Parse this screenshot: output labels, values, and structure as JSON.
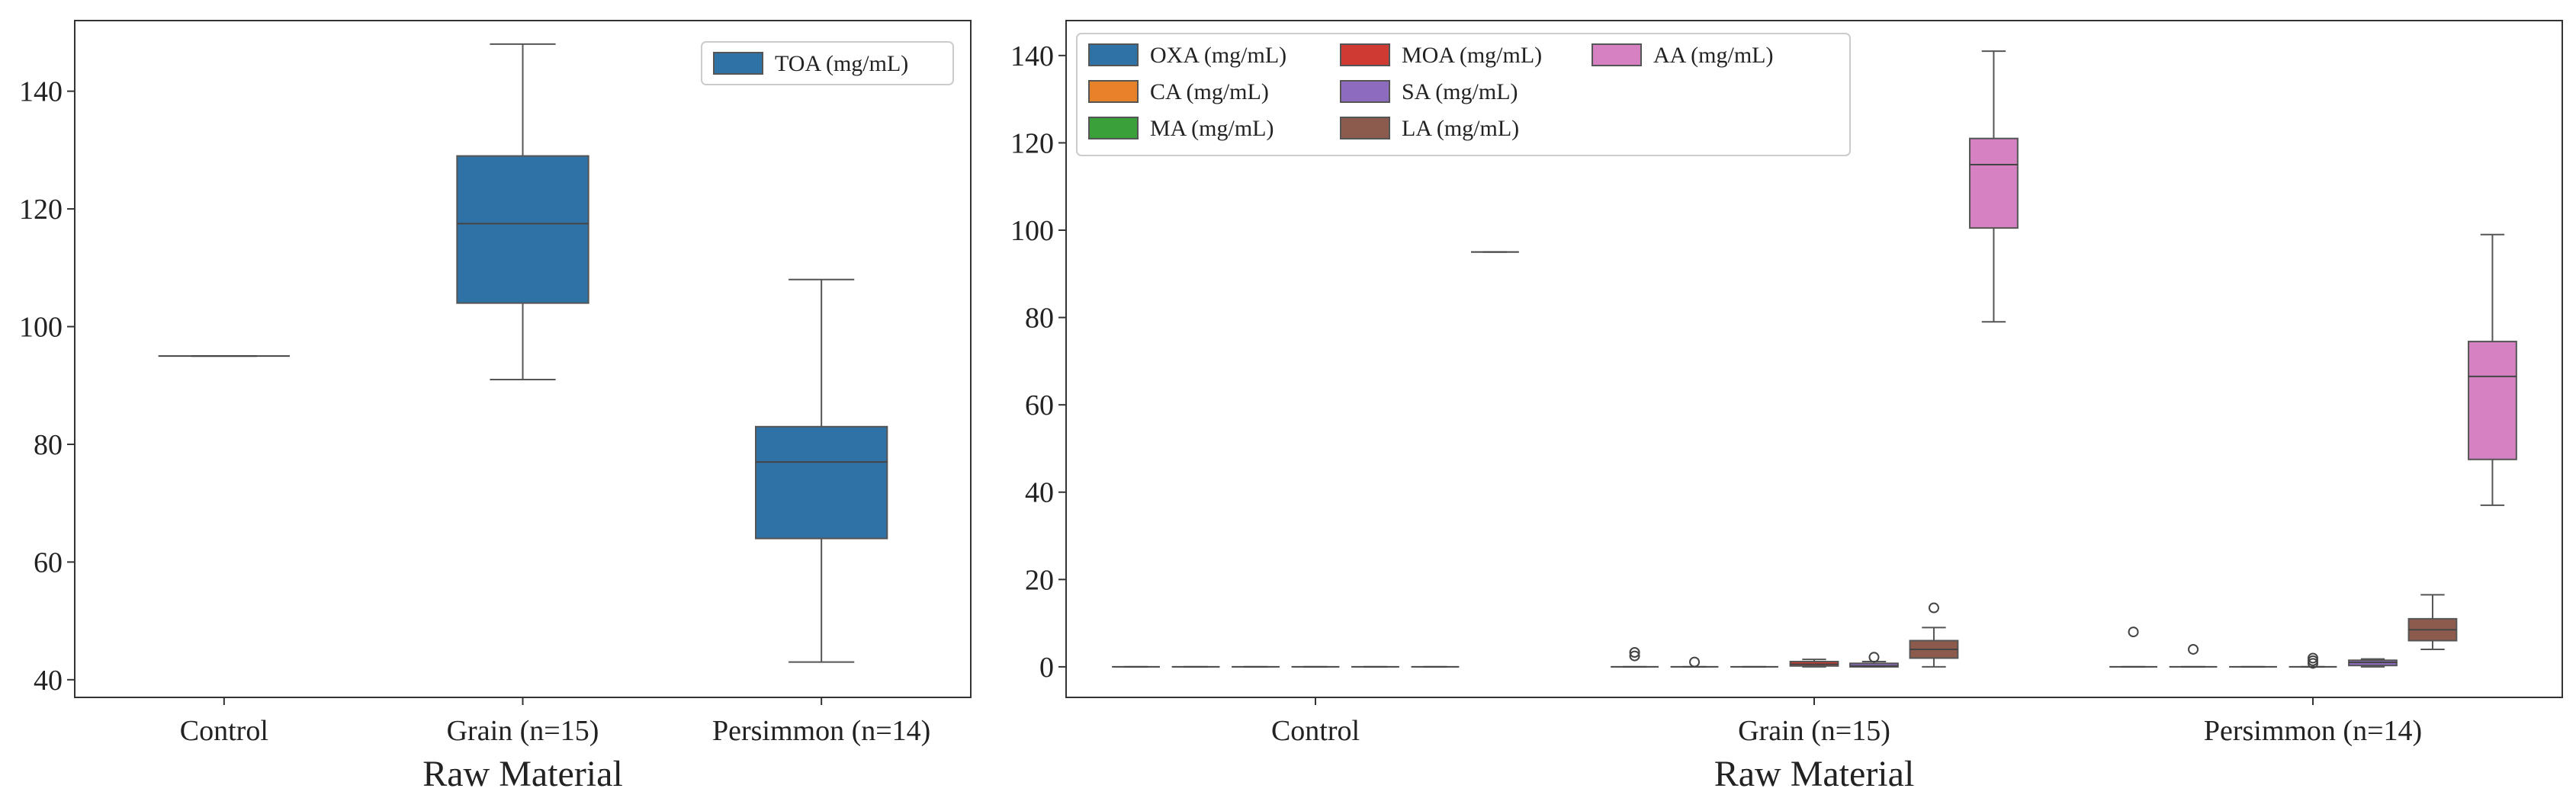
{
  "chart_data": [
    {
      "type": "box",
      "xlabel": "Raw Material",
      "ylabel": "",
      "ylim": [
        37,
        152
      ],
      "yticks": [
        40,
        60,
        80,
        100,
        120,
        140
      ],
      "categories": [
        "Control",
        "Grain (n=15)",
        "Persimmon (n=14)"
      ],
      "legend": {
        "placement": "top-right",
        "entries": [
          {
            "label": "TOA (mg/mL)",
            "color": "#2f73a6"
          }
        ]
      },
      "series": [
        {
          "name": "TOA (mg/mL)",
          "color": "#2f73a6",
          "boxes": [
            {
              "whislo": 95,
              "q1": 95,
              "med": 95,
              "q3": 95,
              "whishi": 95,
              "fliers": []
            },
            {
              "whislo": 91,
              "q1": 104,
              "med": 117.5,
              "q3": 129,
              "whishi": 148,
              "fliers": []
            },
            {
              "whislo": 43,
              "q1": 64,
              "med": 77,
              "q3": 83,
              "whishi": 108,
              "fliers": []
            }
          ]
        }
      ]
    },
    {
      "type": "box",
      "xlabel": "Raw Material",
      "ylabel": "",
      "ylim": [
        -7,
        148
      ],
      "yticks": [
        0,
        20,
        40,
        60,
        80,
        100,
        120,
        140
      ],
      "categories": [
        "Control",
        "Grain (n=15)",
        "Persimmon (n=14)"
      ],
      "legend": {
        "placement": "top-left",
        "columns": 3
      },
      "series": [
        {
          "name": "OXA (mg/mL)",
          "color": "#2f73a6",
          "boxes": [
            {
              "whislo": 0,
              "q1": 0,
              "med": 0,
              "q3": 0,
              "whishi": 0,
              "fliers": []
            },
            {
              "whislo": 0,
              "q1": 0,
              "med": 0,
              "q3": 0,
              "whishi": 0,
              "fliers": [
                2.5,
                3.3
              ]
            },
            {
              "whislo": 0,
              "q1": 0,
              "med": 0,
              "q3": 0,
              "whishi": 0,
              "fliers": [
                8
              ]
            }
          ]
        },
        {
          "name": "CA (mg/mL)",
          "color": "#e8822a",
          "boxes": [
            {
              "whislo": 0,
              "q1": 0,
              "med": 0,
              "q3": 0,
              "whishi": 0,
              "fliers": []
            },
            {
              "whislo": 0,
              "q1": 0,
              "med": 0,
              "q3": 0,
              "whishi": 0,
              "fliers": [
                1.1
              ]
            },
            {
              "whislo": 0,
              "q1": 0,
              "med": 0,
              "q3": 0,
              "whishi": 0,
              "fliers": [
                4
              ]
            }
          ]
        },
        {
          "name": "MA (mg/mL)",
          "color": "#3aa03a",
          "boxes": [
            {
              "whislo": 0,
              "q1": 0,
              "med": 0,
              "q3": 0,
              "whishi": 0,
              "fliers": []
            },
            {
              "whislo": 0,
              "q1": 0,
              "med": 0,
              "q3": 0,
              "whishi": 0,
              "fliers": []
            },
            {
              "whislo": 0,
              "q1": 0,
              "med": 0,
              "q3": 0,
              "whishi": 0,
              "fliers": []
            }
          ]
        },
        {
          "name": "MOA (mg/mL)",
          "color": "#cf3a33",
          "boxes": [
            {
              "whislo": 0,
              "q1": 0,
              "med": 0,
              "q3": 0,
              "whishi": 0,
              "fliers": []
            },
            {
              "whislo": 0,
              "q1": 0.2,
              "med": 0.6,
              "q3": 1.2,
              "whishi": 1.7,
              "fliers": []
            },
            {
              "whislo": 0,
              "q1": 0,
              "med": 0,
              "q3": 0,
              "whishi": 0,
              "fliers": [
                0.8,
                1.4,
                2.0
              ]
            }
          ]
        },
        {
          "name": "SA (mg/mL)",
          "color": "#8d6bbf",
          "boxes": [
            {
              "whislo": 0,
              "q1": 0,
              "med": 0,
              "q3": 0,
              "whishi": 0,
              "fliers": []
            },
            {
              "whislo": 0,
              "q1": 0,
              "med": 0.2,
              "q3": 0.8,
              "whishi": 1.2,
              "fliers": [
                2.2
              ]
            },
            {
              "whislo": 0,
              "q1": 0.3,
              "med": 1.0,
              "q3": 1.5,
              "whishi": 1.8,
              "fliers": []
            }
          ]
        },
        {
          "name": "LA (mg/mL)",
          "color": "#8c5b4e",
          "boxes": [
            {
              "whislo": 0,
              "q1": 0,
              "med": 0,
              "q3": 0,
              "whishi": 0,
              "fliers": []
            },
            {
              "whislo": 0,
              "q1": 2,
              "med": 4,
              "q3": 6,
              "whishi": 9,
              "fliers": [
                13.5
              ]
            },
            {
              "whislo": 4,
              "q1": 6,
              "med": 8.5,
              "q3": 11,
              "whishi": 16.5,
              "fliers": []
            }
          ]
        },
        {
          "name": "AA (mg/mL)",
          "color": "#d681c1",
          "boxes": [
            {
              "whislo": 95,
              "q1": 95,
              "med": 95,
              "q3": 95,
              "whishi": 95,
              "fliers": []
            },
            {
              "whislo": 79,
              "q1": 100.5,
              "med": 115,
              "q3": 121,
              "whishi": 141,
              "fliers": []
            },
            {
              "whislo": 37,
              "q1": 47.5,
              "med": 66.5,
              "q3": 74.5,
              "whishi": 99,
              "fliers": []
            }
          ]
        }
      ]
    }
  ]
}
